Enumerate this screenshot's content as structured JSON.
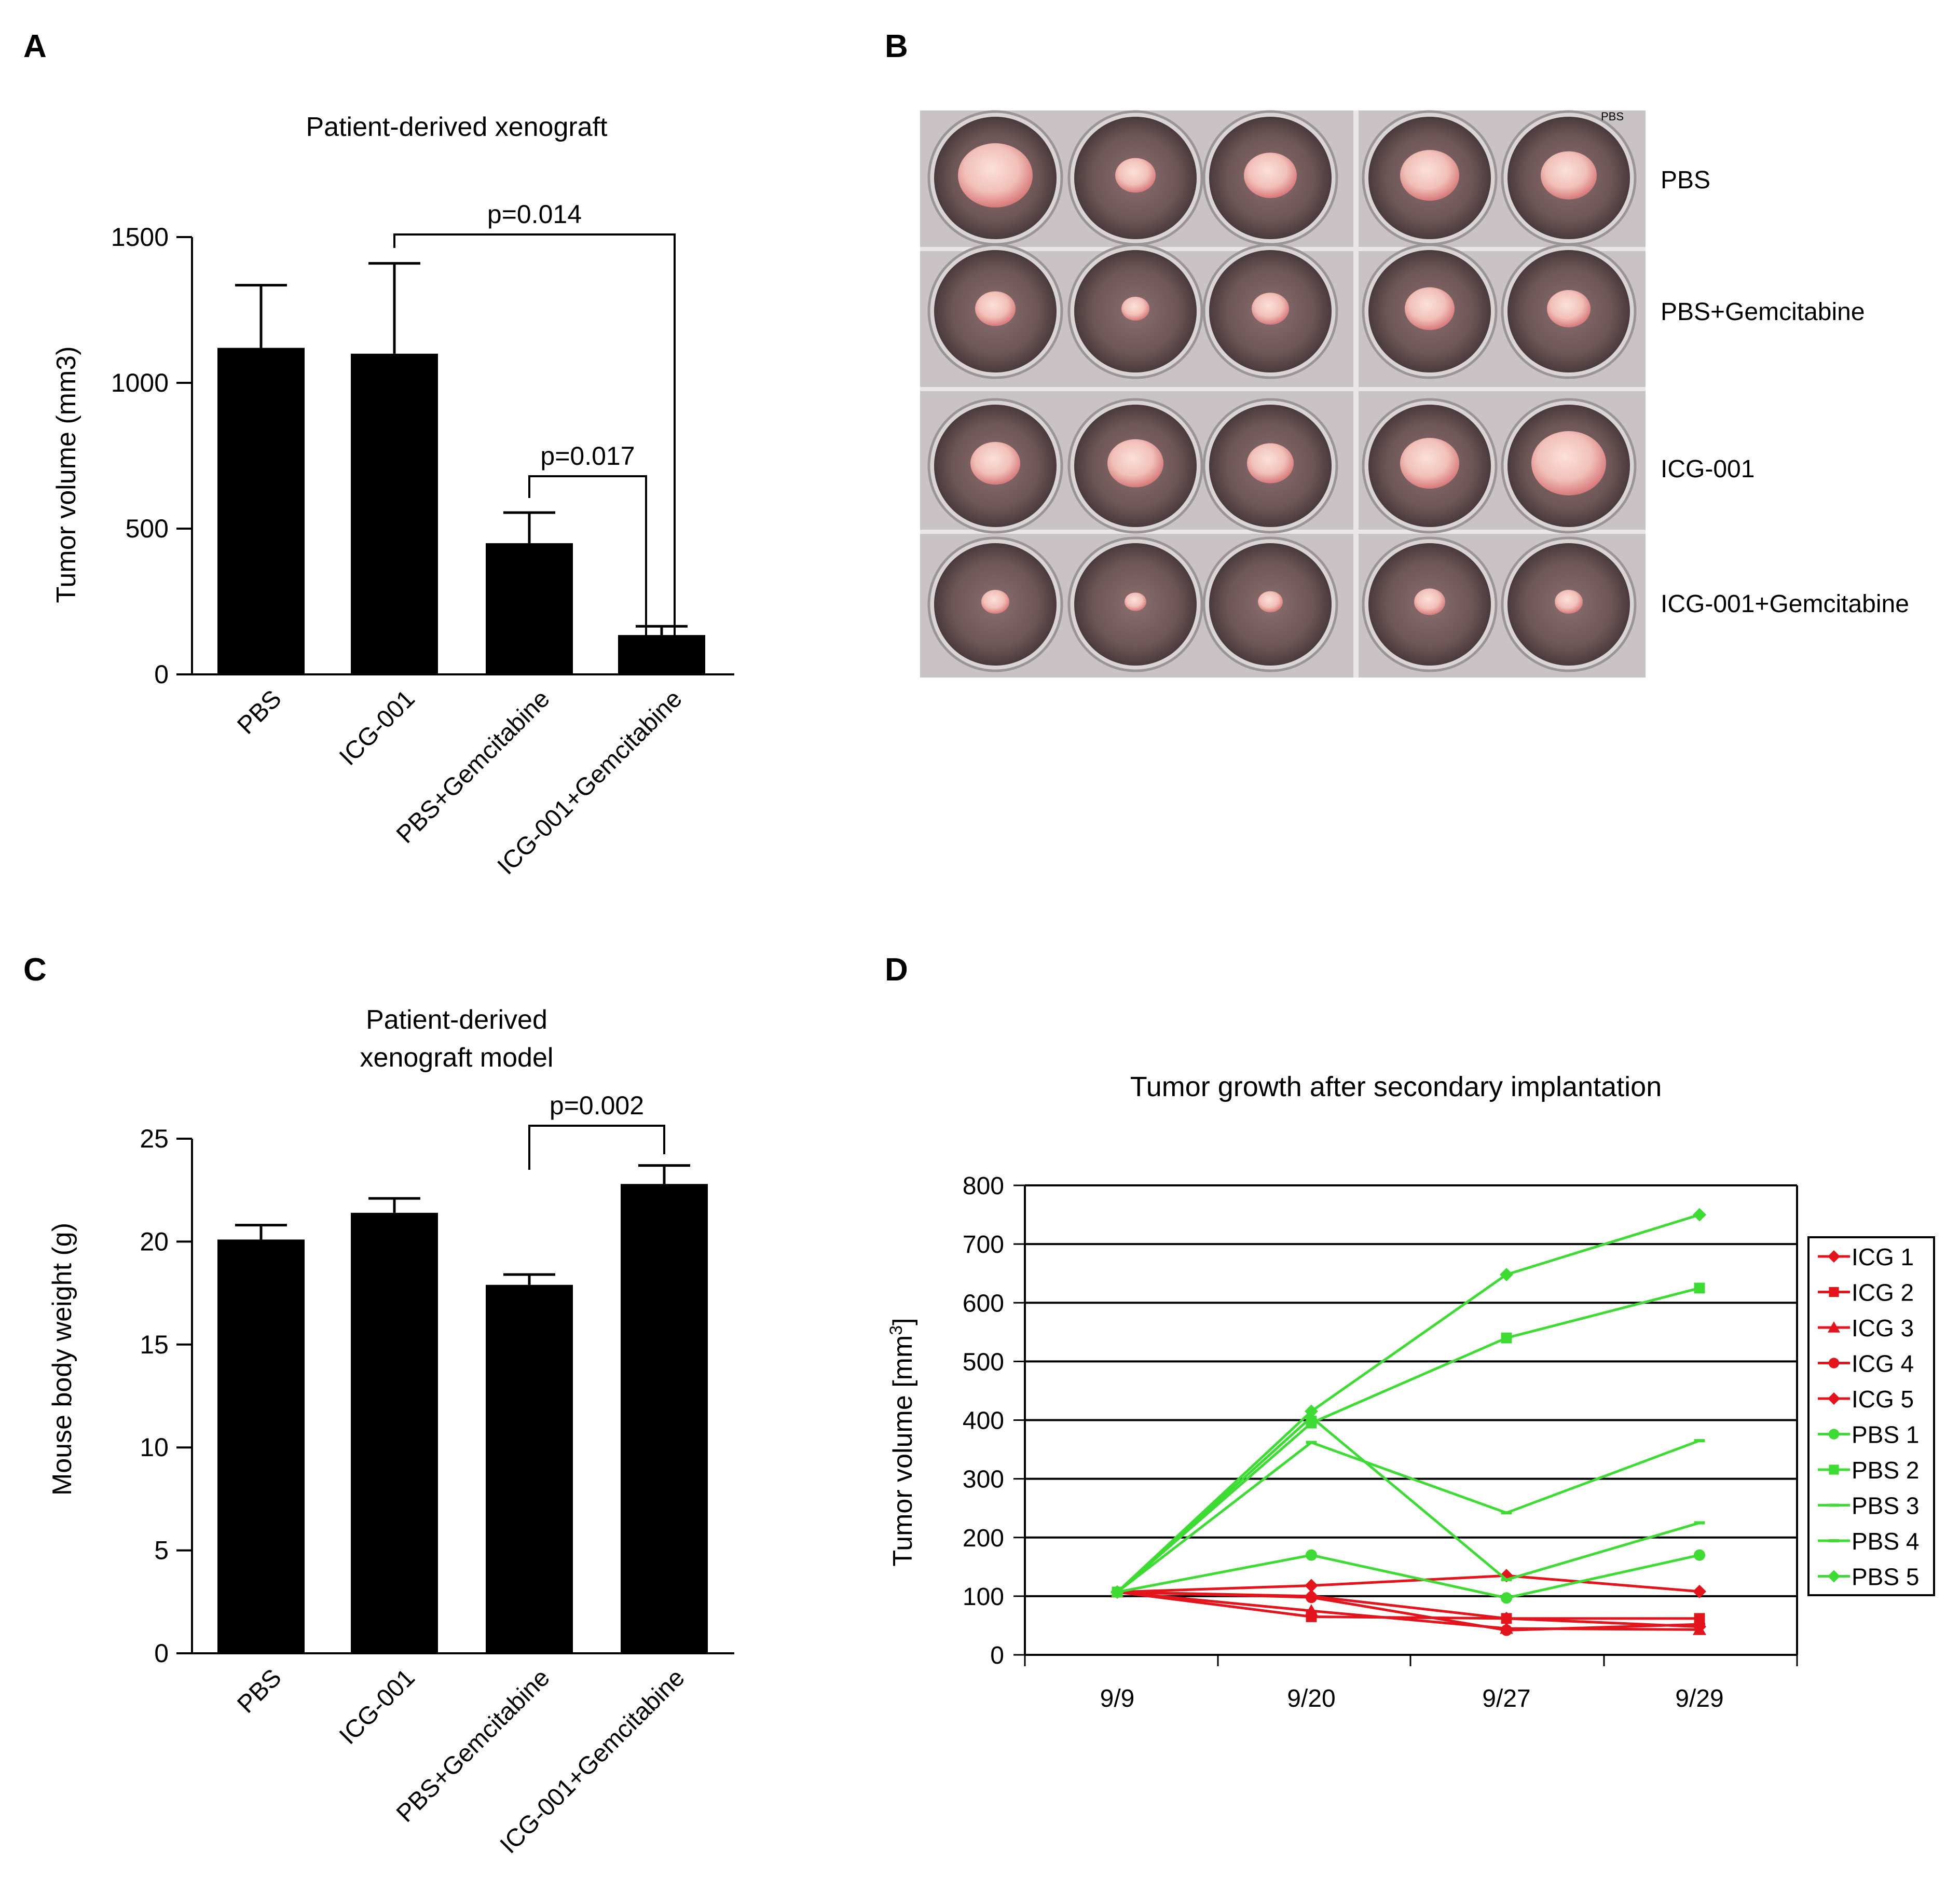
{
  "panels": {
    "A": {
      "letter": "A"
    },
    "B": {
      "letter": "B"
    },
    "C": {
      "letter": "C"
    },
    "D": {
      "letter": "D"
    }
  },
  "chart_data": [
    {
      "panel": "A",
      "type": "bar",
      "title": "Patient-derived xenograft",
      "xlabel": "",
      "ylabel": "Tumor volume (mm3)",
      "categories": [
        "PBS",
        "ICG-001",
        "PBS+Gemcitabine",
        "ICG-001+Gemcitabine"
      ],
      "values": [
        1120,
        1100,
        450,
        135
      ],
      "errors": [
        215,
        310,
        105,
        30
      ],
      "ylim": [
        0,
        1500
      ],
      "yticks": [
        0,
        500,
        1000,
        1500
      ],
      "yticklabels": [
        "0",
        "500",
        "1000",
        "1500"
      ],
      "bar_color": "#000000",
      "annotations": [
        {
          "text": "p=0.014",
          "from": 1,
          "to": 3
        },
        {
          "text": "p=0.017",
          "from": 2,
          "to": 3
        }
      ]
    },
    {
      "panel": "B",
      "type": "image",
      "row_labels": [
        "PBS",
        "PBS+Gemcitabine",
        "ICG-001",
        "ICG-001+Gemcitabine"
      ],
      "well_label": "PBS",
      "tumor_sizes": [
        [
          1.0,
          0.45,
          0.65,
          0.75,
          0.7
        ],
        [
          0.45,
          0.25,
          0.4,
          0.6,
          0.5
        ],
        [
          0.6,
          0.7,
          0.55,
          0.75,
          1.0
        ],
        [
          0.25,
          0.15,
          0.2,
          0.3,
          0.25
        ]
      ]
    },
    {
      "panel": "C",
      "type": "bar",
      "title": "Patient-derived xenograft model",
      "title_lines": [
        "Patient-derived",
        "xenograft model"
      ],
      "xlabel": "",
      "ylabel": "Mouse body weight (g)",
      "categories": [
        "PBS",
        "ICG-001",
        "PBS+Gemcitabine",
        "ICG-001+Gemcitabine"
      ],
      "values": [
        20.1,
        21.4,
        17.9,
        22.8
      ],
      "errors": [
        0.7,
        0.7,
        0.5,
        0.9
      ],
      "ylim": [
        0,
        25
      ],
      "yticks": [
        0,
        5,
        10,
        15,
        20,
        25
      ],
      "yticklabels": [
        "0",
        "5",
        "10",
        "15",
        "20",
        "25"
      ],
      "bar_color": "#000000",
      "annotations": [
        {
          "text": "p=0.002",
          "from": 2,
          "to": 3
        }
      ]
    },
    {
      "panel": "D",
      "type": "line",
      "title": "Tumor growth after secondary implantation",
      "xlabel": "",
      "ylabel": "Tumor volume [mm",
      "ylabel_sup": "3",
      "ylabel_end": "]",
      "categories": [
        "9/9",
        "9/20",
        "9/27",
        "9/29"
      ],
      "ylim": [
        0,
        800
      ],
      "yticks": [
        0,
        100,
        200,
        300,
        400,
        500,
        600,
        700,
        800
      ],
      "yticklabels": [
        "0",
        "100",
        "200",
        "300",
        "400",
        "500",
        "600",
        "700",
        "800"
      ],
      "grid": true,
      "legend_position": "right",
      "series": [
        {
          "name": "ICG 1",
          "color": "#e3141b",
          "marker": "diamond",
          "values": [
            107,
            118,
            135,
            108
          ]
        },
        {
          "name": "ICG 2",
          "color": "#e3141b",
          "marker": "square",
          "values": [
            107,
            65,
            62,
            62
          ]
        },
        {
          "name": "ICG 3",
          "color": "#e3141b",
          "marker": "triangle",
          "values": [
            107,
            75,
            45,
            43
          ]
        },
        {
          "name": "ICG 4",
          "color": "#e3141b",
          "marker": "circle",
          "values": [
            107,
            98,
            42,
            52
          ]
        },
        {
          "name": "ICG 5",
          "color": "#e3141b",
          "marker": "diamond",
          "values": [
            107,
            100,
            62,
            48
          ]
        },
        {
          "name": "PBS 1",
          "color": "#3ddb33",
          "marker": "circle",
          "values": [
            107,
            170,
            97,
            170
          ]
        },
        {
          "name": "PBS 2",
          "color": "#3ddb33",
          "marker": "square",
          "values": [
            107,
            395,
            540,
            625
          ]
        },
        {
          "name": "PBS 3",
          "color": "#3ddb33",
          "marker": "dash",
          "values": [
            107,
            362,
            242,
            365
          ]
        },
        {
          "name": "PBS 4",
          "color": "#3ddb33",
          "marker": "dash",
          "values": [
            107,
            405,
            128,
            225
          ]
        },
        {
          "name": "PBS 5",
          "color": "#3ddb33",
          "marker": "diamond",
          "values": [
            107,
            415,
            648,
            750
          ]
        }
      ]
    }
  ]
}
